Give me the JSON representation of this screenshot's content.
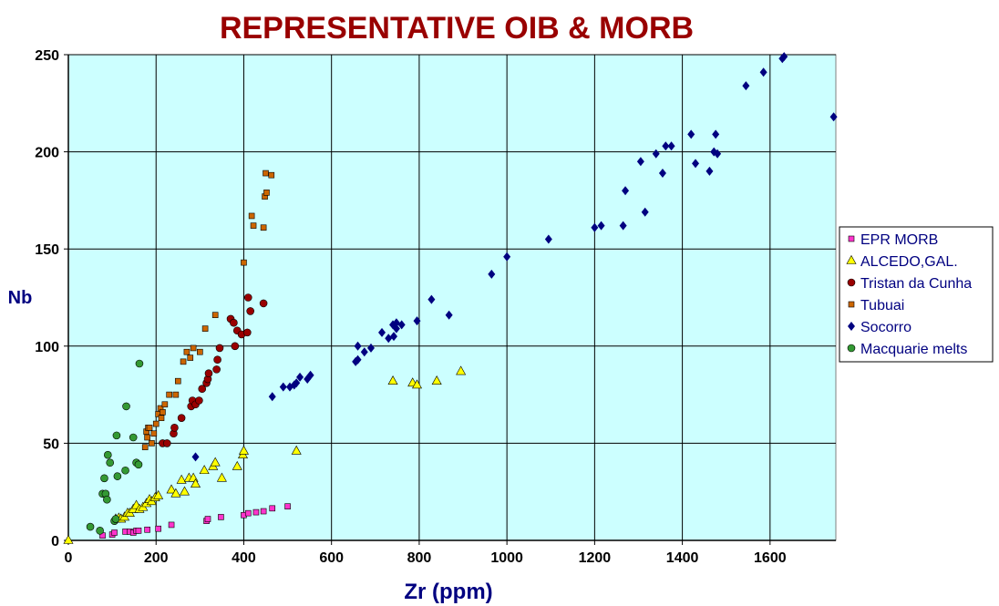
{
  "chart_data": {
    "type": "scatter",
    "title": "REPRESENTATIVE OIB & MORB",
    "xlabel": "Zr (ppm)",
    "ylabel": "Nb",
    "xlim": [
      0,
      1750
    ],
    "ylim": [
      0,
      250
    ],
    "xticks": [
      0,
      200,
      400,
      600,
      800,
      1000,
      1200,
      1400,
      1600
    ],
    "yticks": [
      0,
      50,
      100,
      150,
      200,
      250
    ],
    "grid": true,
    "legend_position": "right",
    "plot_background": "#ccffff",
    "series": [
      {
        "name": "EPR MORB",
        "marker": "square",
        "color": "#ff33cc",
        "points": [
          [
            78,
            2.5
          ],
          [
            100,
            3
          ],
          [
            105,
            4
          ],
          [
            130,
            4.5
          ],
          [
            140,
            4.5
          ],
          [
            148,
            4
          ],
          [
            155,
            5
          ],
          [
            160,
            5
          ],
          [
            180,
            5.5
          ],
          [
            205,
            6
          ],
          [
            235,
            8
          ],
          [
            315,
            10
          ],
          [
            318,
            11
          ],
          [
            348,
            12
          ],
          [
            400,
            13
          ],
          [
            410,
            14
          ],
          [
            428,
            14.5
          ],
          [
            445,
            15
          ],
          [
            465,
            16.5
          ],
          [
            500,
            17.5
          ]
        ]
      },
      {
        "name": "ALCEDO,GAL.",
        "marker": "triangle",
        "color": "#ffff00",
        "points": [
          [
            0,
            0
          ],
          [
            108,
            11
          ],
          [
            115,
            11.5
          ],
          [
            120,
            11
          ],
          [
            128,
            12
          ],
          [
            135,
            14
          ],
          [
            140,
            14
          ],
          [
            148,
            16
          ],
          [
            155,
            18
          ],
          [
            162,
            16
          ],
          [
            170,
            17
          ],
          [
            178,
            19
          ],
          [
            185,
            21
          ],
          [
            190,
            20
          ],
          [
            198,
            22
          ],
          [
            205,
            23
          ],
          [
            235,
            26
          ],
          [
            245,
            24
          ],
          [
            258,
            31
          ],
          [
            265,
            25
          ],
          [
            275,
            32
          ],
          [
            285,
            32
          ],
          [
            290,
            29
          ],
          [
            310,
            36
          ],
          [
            330,
            38
          ],
          [
            335,
            40
          ],
          [
            350,
            32
          ],
          [
            385,
            38
          ],
          [
            398,
            44
          ],
          [
            400,
            46
          ],
          [
            520,
            46
          ],
          [
            740,
            82
          ],
          [
            785,
            81
          ],
          [
            795,
            80
          ],
          [
            840,
            82
          ],
          [
            895,
            87
          ]
        ]
      },
      {
        "name": "Tristan da Cunha",
        "marker": "circle",
        "color": "#990000",
        "points": [
          [
            215,
            50
          ],
          [
            225,
            50
          ],
          [
            240,
            55
          ],
          [
            242,
            58
          ],
          [
            258,
            63
          ],
          [
            280,
            69
          ],
          [
            283,
            72
          ],
          [
            290,
            70
          ],
          [
            298,
            72
          ],
          [
            305,
            78
          ],
          [
            315,
            81
          ],
          [
            318,
            83
          ],
          [
            320,
            86
          ],
          [
            338,
            88
          ],
          [
            340,
            93
          ],
          [
            345,
            99
          ],
          [
            370,
            114
          ],
          [
            377,
            112
          ],
          [
            380,
            100
          ],
          [
            385,
            108
          ],
          [
            395,
            106
          ],
          [
            408,
            107
          ],
          [
            410,
            125
          ],
          [
            415,
            118
          ],
          [
            445,
            122
          ]
        ]
      },
      {
        "name": "Tubuai",
        "marker": "square",
        "color": "#cc6600",
        "points": [
          [
            175,
            48
          ],
          [
            178,
            56
          ],
          [
            180,
            53
          ],
          [
            182,
            58
          ],
          [
            185,
            58
          ],
          [
            190,
            50
          ],
          [
            195,
            55
          ],
          [
            200,
            60
          ],
          [
            205,
            65
          ],
          [
            210,
            68
          ],
          [
            212,
            63
          ],
          [
            215,
            66
          ],
          [
            220,
            70
          ],
          [
            230,
            75
          ],
          [
            245,
            75
          ],
          [
            250,
            82
          ],
          [
            262,
            92
          ],
          [
            270,
            97
          ],
          [
            278,
            94
          ],
          [
            285,
            99
          ],
          [
            300,
            97
          ],
          [
            312,
            109
          ],
          [
            335,
            116
          ],
          [
            400,
            143
          ],
          [
            418,
            167
          ],
          [
            422,
            162
          ],
          [
            445,
            161
          ],
          [
            448,
            177
          ],
          [
            450,
            189
          ],
          [
            452,
            179
          ],
          [
            463,
            188
          ]
        ]
      },
      {
        "name": "Socorro",
        "marker": "diamond",
        "color": "#000080",
        "points": [
          [
            290,
            43
          ],
          [
            465,
            74
          ],
          [
            490,
            79
          ],
          [
            505,
            79
          ],
          [
            515,
            80
          ],
          [
            520,
            81
          ],
          [
            528,
            84
          ],
          [
            545,
            83
          ],
          [
            552,
            85
          ],
          [
            655,
            92
          ],
          [
            660,
            93
          ],
          [
            660,
            100
          ],
          [
            675,
            97
          ],
          [
            690,
            99
          ],
          [
            715,
            107
          ],
          [
            730,
            104
          ],
          [
            740,
            111
          ],
          [
            742,
            105
          ],
          [
            748,
            109
          ],
          [
            748,
            112
          ],
          [
            760,
            111
          ],
          [
            795,
            113
          ],
          [
            828,
            124
          ],
          [
            868,
            116
          ],
          [
            965,
            137
          ],
          [
            1000,
            146
          ],
          [
            1095,
            155
          ],
          [
            1200,
            161
          ],
          [
            1215,
            162
          ],
          [
            1265,
            162
          ],
          [
            1270,
            180
          ],
          [
            1305,
            195
          ],
          [
            1315,
            169
          ],
          [
            1340,
            199
          ],
          [
            1355,
            189
          ],
          [
            1362,
            203
          ],
          [
            1375,
            203
          ],
          [
            1420,
            209
          ],
          [
            1430,
            194
          ],
          [
            1462,
            190
          ],
          [
            1472,
            200
          ],
          [
            1476,
            209
          ],
          [
            1480,
            199
          ],
          [
            1545,
            234
          ],
          [
            1585,
            241
          ],
          [
            1628,
            248
          ],
          [
            1632,
            249
          ],
          [
            1745,
            218
          ]
        ]
      },
      {
        "name": "Macquarie melts",
        "marker": "circle",
        "color": "#339933",
        "points": [
          [
            50,
            7
          ],
          [
            72,
            5
          ],
          [
            78,
            24
          ],
          [
            82,
            32
          ],
          [
            85,
            24
          ],
          [
            88,
            21
          ],
          [
            90,
            44
          ],
          [
            95,
            40
          ],
          [
            105,
            10
          ],
          [
            108,
            11
          ],
          [
            110,
            54
          ],
          [
            112,
            33
          ],
          [
            130,
            36
          ],
          [
            132,
            69
          ],
          [
            148,
            53
          ],
          [
            155,
            40
          ],
          [
            160,
            39
          ],
          [
            162,
            91
          ]
        ]
      }
    ]
  }
}
